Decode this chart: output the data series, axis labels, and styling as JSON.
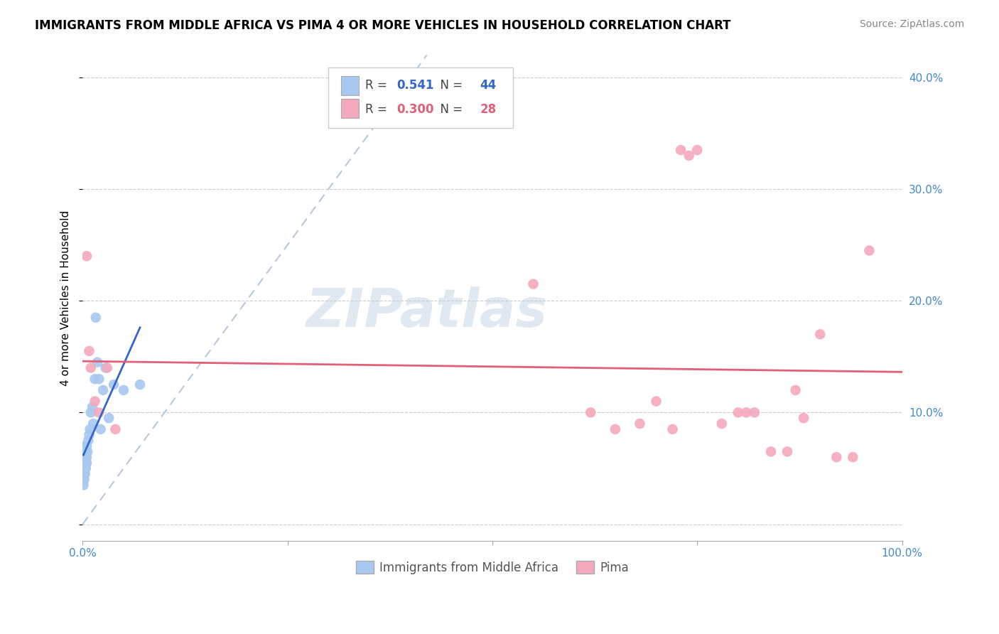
{
  "title": "IMMIGRANTS FROM MIDDLE AFRICA VS PIMA 4 OR MORE VEHICLES IN HOUSEHOLD CORRELATION CHART",
  "source": "Source: ZipAtlas.com",
  "ylabel": "4 or more Vehicles in Household",
  "blue_R": 0.541,
  "blue_N": 44,
  "pink_R": 0.3,
  "pink_N": 28,
  "blue_color": "#A8C8F0",
  "pink_color": "#F4A8BC",
  "blue_line_color": "#3366CC",
  "pink_line_color": "#E0607A",
  "diag_line_color": "#B8C8D8",
  "watermark": "ZIPatlas",
  "xlim": [
    0.0,
    1.0
  ],
  "ylim": [
    -0.015,
    0.42
  ],
  "blue_x": [
    0.001,
    0.001,
    0.001,
    0.001,
    0.001,
    0.001,
    0.001,
    0.001,
    0.002,
    0.002,
    0.002,
    0.002,
    0.002,
    0.002,
    0.003,
    0.003,
    0.003,
    0.003,
    0.003,
    0.004,
    0.004,
    0.004,
    0.004,
    0.005,
    0.005,
    0.005,
    0.006,
    0.007,
    0.008,
    0.009,
    0.01,
    0.012,
    0.013,
    0.015,
    0.016,
    0.018,
    0.02,
    0.022,
    0.025,
    0.028,
    0.032,
    0.038,
    0.05,
    0.07
  ],
  "blue_y": [
    0.035,
    0.04,
    0.045,
    0.05,
    0.055,
    0.06,
    0.065,
    0.07,
    0.04,
    0.045,
    0.05,
    0.055,
    0.06,
    0.065,
    0.045,
    0.05,
    0.055,
    0.06,
    0.065,
    0.05,
    0.055,
    0.06,
    0.065,
    0.055,
    0.06,
    0.07,
    0.065,
    0.075,
    0.08,
    0.085,
    0.1,
    0.105,
    0.09,
    0.13,
    0.185,
    0.145,
    0.13,
    0.085,
    0.12,
    0.14,
    0.095,
    0.125,
    0.12,
    0.125
  ],
  "pink_x": [
    0.005,
    0.008,
    0.01,
    0.015,
    0.02,
    0.03,
    0.04,
    0.55,
    0.62,
    0.65,
    0.68,
    0.7,
    0.72,
    0.73,
    0.74,
    0.75,
    0.78,
    0.8,
    0.81,
    0.82,
    0.84,
    0.86,
    0.87,
    0.88,
    0.9,
    0.92,
    0.94,
    0.96
  ],
  "pink_y": [
    0.24,
    0.155,
    0.14,
    0.11,
    0.1,
    0.14,
    0.085,
    0.215,
    0.1,
    0.085,
    0.09,
    0.11,
    0.085,
    0.335,
    0.33,
    0.335,
    0.09,
    0.1,
    0.1,
    0.1,
    0.065,
    0.065,
    0.12,
    0.095,
    0.17,
    0.06,
    0.06,
    0.245
  ]
}
